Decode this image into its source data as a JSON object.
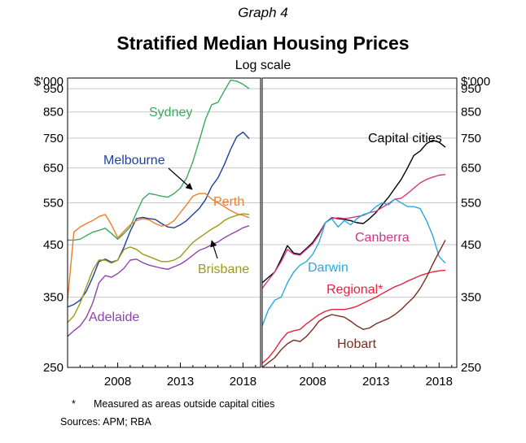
{
  "header": {
    "graph_label": "Graph 4",
    "title": "Stratified Median Housing Prices",
    "subtitle": "Log scale"
  },
  "footer": {
    "footnote_mark": "*",
    "footnote_text": "Measured as areas outside capital cities",
    "sources": "Sources:   APM; RBA"
  },
  "chart_data": [
    {
      "type": "line",
      "panel": "left",
      "title": "Stratified Median Housing Prices",
      "xlabel": "",
      "ylabel": "$'000",
      "yscale": "log",
      "ylim": [
        250,
        1000
      ],
      "xlim": [
        2004.0,
        2019.4
      ],
      "y_ticks": [
        250,
        350,
        450,
        550,
        650,
        750,
        850,
        950
      ],
      "y_unit_label": "$'000",
      "x_ticks": [
        2008,
        2013,
        2018
      ],
      "grid": true,
      "series": [
        {
          "name": "Sydney",
          "color": "#3aaa5c",
          "x": [
            2004.0,
            2004.5,
            2005.0,
            2005.5,
            2006.0,
            2006.5,
            2007.0,
            2007.5,
            2008.0,
            2008.5,
            2009.0,
            2009.5,
            2010.0,
            2010.5,
            2011.0,
            2011.5,
            2012.0,
            2012.5,
            2013.0,
            2013.5,
            2014.0,
            2014.5,
            2015.0,
            2015.5,
            2016.0,
            2016.5,
            2017.0,
            2017.5,
            2018.0,
            2018.5
          ],
          "y": [
            460,
            460,
            462,
            470,
            478,
            482,
            487,
            475,
            462,
            475,
            490,
            525,
            560,
            575,
            572,
            568,
            565,
            575,
            590,
            620,
            670,
            740,
            820,
            880,
            890,
            940,
            990,
            985,
            970,
            950
          ]
        },
        {
          "name": "Melbourne",
          "color": "#1f3fa0",
          "x": [
            2004.0,
            2004.5,
            2005.0,
            2005.5,
            2006.0,
            2006.5,
            2007.0,
            2007.5,
            2008.0,
            2008.5,
            2009.0,
            2009.5,
            2010.0,
            2010.5,
            2011.0,
            2011.5,
            2012.0,
            2012.5,
            2013.0,
            2013.5,
            2014.0,
            2014.5,
            2015.0,
            2015.5,
            2016.0,
            2016.5,
            2017.0,
            2017.5,
            2018.0,
            2018.5
          ],
          "y": [
            334,
            338,
            345,
            360,
            385,
            415,
            420,
            414,
            418,
            445,
            480,
            510,
            513,
            510,
            508,
            498,
            490,
            488,
            495,
            505,
            520,
            535,
            558,
            595,
            620,
            660,
            710,
            755,
            772,
            748
          ]
        },
        {
          "name": "Perth",
          "color": "#ef7d2a",
          "x": [
            2004.0,
            2004.5,
            2005.0,
            2005.5,
            2006.0,
            2006.5,
            2007.0,
            2007.5,
            2008.0,
            2008.5,
            2009.0,
            2009.5,
            2010.0,
            2010.5,
            2011.0,
            2011.5,
            2012.0,
            2012.5,
            2013.0,
            2013.5,
            2014.0,
            2014.5,
            2015.0,
            2015.5,
            2016.0,
            2016.5,
            2017.0,
            2017.5,
            2018.0,
            2018.5
          ],
          "y": [
            345,
            478,
            490,
            498,
            505,
            515,
            520,
            495,
            465,
            480,
            495,
            505,
            510,
            507,
            498,
            492,
            495,
            505,
            525,
            545,
            568,
            575,
            575,
            560,
            550,
            540,
            530,
            522,
            518,
            512
          ]
        },
        {
          "name": "Brisbane",
          "color": "#9a9a1a",
          "x": [
            2004.0,
            2004.5,
            2005.0,
            2005.5,
            2006.0,
            2006.5,
            2007.0,
            2007.5,
            2008.0,
            2008.5,
            2009.0,
            2009.5,
            2010.0,
            2010.5,
            2011.0,
            2011.5,
            2012.0,
            2012.5,
            2013.0,
            2013.5,
            2014.0,
            2014.5,
            2015.0,
            2015.5,
            2016.0,
            2016.5,
            2017.0,
            2017.5,
            2018.0,
            2018.5
          ],
          "y": [
            310,
            320,
            340,
            368,
            398,
            418,
            418,
            412,
            418,
            440,
            445,
            440,
            430,
            425,
            420,
            415,
            415,
            418,
            425,
            440,
            455,
            465,
            475,
            485,
            493,
            505,
            513,
            518,
            522,
            520
          ]
        },
        {
          "name": "Adelaide",
          "color": "#8e44ad",
          "x": [
            2004.0,
            2004.5,
            2005.0,
            2005.5,
            2006.0,
            2006.5,
            2007.0,
            2007.5,
            2008.0,
            2008.5,
            2009.0,
            2009.5,
            2010.0,
            2010.5,
            2011.0,
            2011.5,
            2012.0,
            2012.5,
            2013.0,
            2013.5,
            2014.0,
            2014.5,
            2015.0,
            2015.5,
            2016.0,
            2016.5,
            2017.0,
            2017.5,
            2018.0,
            2018.5
          ],
          "y": [
            290,
            298,
            305,
            318,
            340,
            375,
            388,
            385,
            392,
            402,
            418,
            420,
            413,
            408,
            405,
            402,
            400,
            405,
            410,
            418,
            428,
            438,
            443,
            450,
            456,
            465,
            473,
            480,
            488,
            493
          ]
        }
      ],
      "annotations": [
        {
          "text": "Sydney",
          "color": "#3aaa5c"
        },
        {
          "text": "Melbourne",
          "color": "#1f3fa0"
        },
        {
          "text": "Perth",
          "color": "#ef7d2a"
        },
        {
          "text": "Brisbane",
          "color": "#9a9a1a"
        },
        {
          "text": "Adelaide",
          "color": "#8e44ad"
        }
      ]
    },
    {
      "type": "line",
      "panel": "right",
      "xlabel": "",
      "ylabel": "$'000",
      "yscale": "log",
      "ylim": [
        250,
        1000
      ],
      "xlim": [
        2004.0,
        2019.4
      ],
      "y_ticks": [
        250,
        350,
        450,
        550,
        650,
        750,
        850,
        950
      ],
      "y_unit_label": "$'000",
      "x_ticks": [
        2008,
        2013,
        2018
      ],
      "grid": true,
      "series": [
        {
          "name": "Capital cities",
          "color": "#000000",
          "x": [
            2004.0,
            2004.5,
            2005.0,
            2005.5,
            2006.0,
            2006.5,
            2007.0,
            2007.5,
            2008.0,
            2008.5,
            2009.0,
            2009.5,
            2010.0,
            2010.5,
            2011.0,
            2011.5,
            2012.0,
            2012.5,
            2013.0,
            2013.5,
            2014.0,
            2014.5,
            2015.0,
            2015.5,
            2016.0,
            2016.5,
            2017.0,
            2017.5,
            2018.0,
            2018.5
          ],
          "y": [
            375,
            385,
            395,
            420,
            448,
            432,
            430,
            442,
            455,
            475,
            500,
            512,
            510,
            508,
            505,
            500,
            498,
            510,
            525,
            545,
            565,
            590,
            615,
            650,
            690,
            705,
            730,
            742,
            735,
            718
          ]
        },
        {
          "name": "Canberra",
          "color": "#d63384",
          "x": [
            2004.0,
            2004.5,
            2005.0,
            2005.5,
            2006.0,
            2006.5,
            2007.0,
            2007.5,
            2008.0,
            2008.5,
            2009.0,
            2009.5,
            2010.0,
            2010.5,
            2011.0,
            2011.5,
            2012.0,
            2012.5,
            2013.0,
            2013.5,
            2014.0,
            2014.5,
            2015.0,
            2015.5,
            2016.0,
            2016.5,
            2017.0,
            2017.5,
            2018.0,
            2018.5
          ],
          "y": [
            365,
            380,
            395,
            415,
            440,
            430,
            428,
            440,
            452,
            472,
            500,
            510,
            512,
            510,
            512,
            515,
            518,
            525,
            528,
            538,
            548,
            560,
            562,
            575,
            590,
            605,
            615,
            622,
            628,
            630
          ]
        },
        {
          "name": "Darwin",
          "color": "#29a8df",
          "x": [
            2004.0,
            2004.5,
            2005.0,
            2005.5,
            2006.0,
            2006.5,
            2007.0,
            2007.5,
            2008.0,
            2008.5,
            2009.0,
            2009.5,
            2010.0,
            2010.5,
            2011.0,
            2011.5,
            2012.0,
            2012.5,
            2013.0,
            2013.5,
            2014.0,
            2014.5,
            2015.0,
            2015.5,
            2016.0,
            2016.5,
            2017.0,
            2017.5,
            2018.0,
            2018.5
          ],
          "y": [
            305,
            330,
            345,
            350,
            375,
            395,
            408,
            415,
            430,
            455,
            500,
            510,
            490,
            505,
            495,
            510,
            520,
            525,
            540,
            550,
            545,
            560,
            550,
            540,
            540,
            535,
            505,
            470,
            425,
            412
          ]
        },
        {
          "name": "Regional*",
          "color": "#e8213b",
          "x": [
            2004.0,
            2004.5,
            2005.0,
            2005.5,
            2006.0,
            2006.5,
            2007.0,
            2007.5,
            2008.0,
            2008.5,
            2009.0,
            2009.5,
            2010.0,
            2010.5,
            2011.0,
            2011.5,
            2012.0,
            2012.5,
            2013.0,
            2013.5,
            2014.0,
            2014.5,
            2015.0,
            2015.5,
            2016.0,
            2016.5,
            2017.0,
            2017.5,
            2018.0,
            2018.5
          ],
          "y": [
            255,
            262,
            272,
            285,
            295,
            298,
            300,
            308,
            315,
            322,
            327,
            330,
            330,
            330,
            332,
            335,
            340,
            345,
            350,
            356,
            362,
            368,
            372,
            378,
            383,
            388,
            392,
            395,
            397,
            398
          ]
        },
        {
          "name": "Hobart",
          "color": "#7a2e1e",
          "x": [
            2004.0,
            2004.5,
            2005.0,
            2005.5,
            2006.0,
            2006.5,
            2007.0,
            2007.5,
            2008.0,
            2008.5,
            2009.0,
            2009.5,
            2010.0,
            2010.5,
            2011.0,
            2011.5,
            2012.0,
            2012.5,
            2013.0,
            2013.5,
            2014.0,
            2014.5,
            2015.0,
            2015.5,
            2016.0,
            2016.5,
            2017.0,
            2017.5,
            2018.0,
            2018.5
          ],
          "y": [
            250,
            256,
            262,
            272,
            280,
            285,
            283,
            290,
            300,
            312,
            318,
            322,
            320,
            318,
            312,
            305,
            300,
            302,
            308,
            312,
            316,
            322,
            330,
            340,
            350,
            365,
            385,
            410,
            435,
            460
          ]
        }
      ],
      "annotations": [
        {
          "text": "Capital cities",
          "color": "#000000"
        },
        {
          "text": "Canberra",
          "color": "#d63384"
        },
        {
          "text": "Darwin",
          "color": "#29a8df"
        },
        {
          "text": "Regional*",
          "color": "#e8213b"
        },
        {
          "text": "Hobart",
          "color": "#7a2e1e"
        }
      ]
    }
  ]
}
